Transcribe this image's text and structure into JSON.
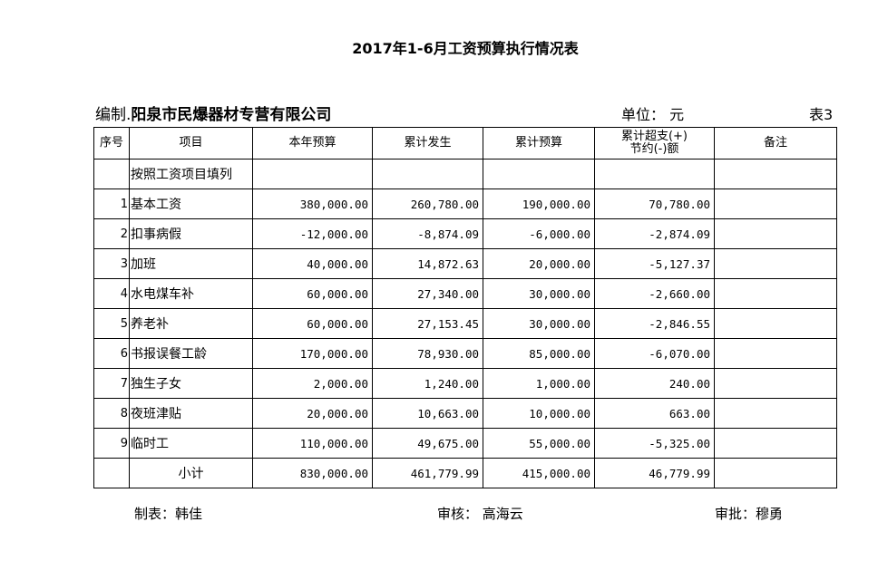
{
  "title": "2017年1-6月工资预算执行情况表",
  "editor": {
    "label": "编制.",
    "company": "阳泉市民爆器材专营有限公司"
  },
  "unit": "单位：  元",
  "table_no": "表3",
  "columns": [
    "序号",
    "项目",
    "本年预算",
    "累计发生",
    "累计预算",
    "累计超支(+)节约(-)额",
    "备注"
  ],
  "col_over_line1": "累计超支(+)",
  "col_over_line2": "节约(-)额",
  "note_row": "按照工资项目填列",
  "rows": [
    {
      "no": "1",
      "item": "基本工资",
      "budget": "380,000.00",
      "actual": "260,780.00",
      "cum_budget": "190,000.00",
      "diff": "70,780.00"
    },
    {
      "no": "2",
      "item": "扣事病假",
      "budget": "-12,000.00",
      "actual": "-8,874.09",
      "cum_budget": "-6,000.00",
      "diff": "-2,874.09"
    },
    {
      "no": "3",
      "item": "加班",
      "budget": "40,000.00",
      "actual": "14,872.63",
      "cum_budget": "20,000.00",
      "diff": "-5,127.37"
    },
    {
      "no": "4",
      "item": "水电煤车补",
      "budget": "60,000.00",
      "actual": "27,340.00",
      "cum_budget": "30,000.00",
      "diff": "-2,660.00"
    },
    {
      "no": "5",
      "item": "养老补",
      "budget": "60,000.00",
      "actual": "27,153.45",
      "cum_budget": "30,000.00",
      "diff": "-2,846.55"
    },
    {
      "no": "6",
      "item": "书报误餐工龄",
      "budget": "170,000.00",
      "actual": "78,930.00",
      "cum_budget": "85,000.00",
      "diff": "-6,070.00"
    },
    {
      "no": "7",
      "item": "独生子女",
      "budget": "2,000.00",
      "actual": "1,240.00",
      "cum_budget": "1,000.00",
      "diff": "240.00"
    },
    {
      "no": "8",
      "item": "夜班津贴",
      "budget": "20,000.00",
      "actual": "10,663.00",
      "cum_budget": "10,000.00",
      "diff": "663.00"
    },
    {
      "no": "9",
      "item": "临时工",
      "budget": "110,000.00",
      "actual": "49,675.00",
      "cum_budget": "55,000.00",
      "diff": "-5,325.00"
    }
  ],
  "subtotal": {
    "label": "小计",
    "budget": "830,000.00",
    "actual": "461,779.99",
    "cum_budget": "415,000.00",
    "diff": "46,779.99"
  },
  "footer": {
    "maker": "制表：韩佳",
    "reviewer": "审核：  高海云",
    "approver": "审批：穆勇"
  }
}
